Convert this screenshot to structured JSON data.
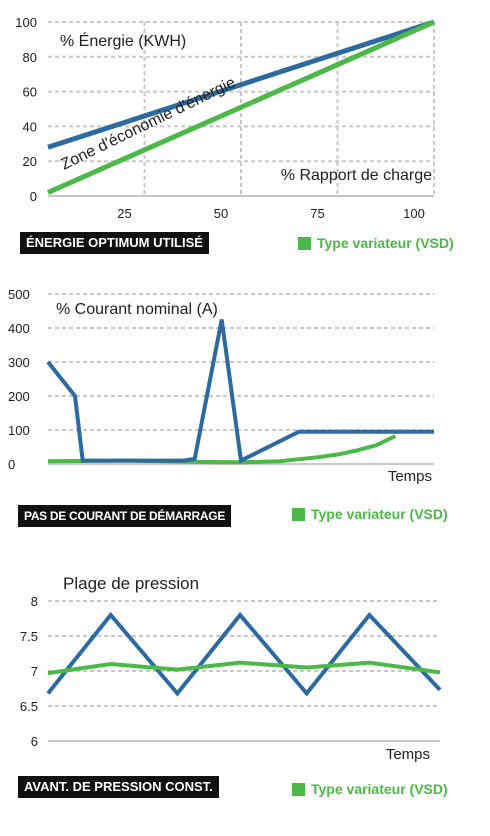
{
  "colors": {
    "blue": "#2d6aa0",
    "green": "#4cb848",
    "grid": "#c8c8c8"
  },
  "chart_data": [
    {
      "type": "line",
      "ylim": [
        0,
        100
      ],
      "xlim": [
        0,
        100
      ],
      "x_ticks": [
        "25",
        "50",
        "75",
        "100"
      ],
      "y_ticks": [
        "0",
        "20",
        "40",
        "60",
        "80",
        "100"
      ],
      "labels": {
        "top": "% Énergie (KWH)",
        "bottom": "% Rapport de charge",
        "diagonal": "Zone d'économie d'énergie"
      },
      "series": [
        {
          "color": "blue",
          "x": [
            0,
            100
          ],
          "y": [
            28,
            100
          ]
        },
        {
          "color": "green",
          "x": [
            0,
            100
          ],
          "y": [
            2,
            100
          ]
        }
      ],
      "legend": {
        "left": "ÉNERGIE OPTIMUM UTILISÉ",
        "right": "Type variateur (VSD)"
      }
    },
    {
      "type": "line",
      "ylim": [
        0,
        500
      ],
      "y_ticks": [
        "0",
        "100",
        "200",
        "300",
        "400",
        "500"
      ],
      "labels": {
        "top": "% Courant nominal (A)",
        "xaxis": "Temps"
      },
      "series": [
        {
          "color": "blue",
          "x": [
            0,
            7,
            9,
            35,
            38,
            45,
            50,
            65,
            100
          ],
          "y": [
            300,
            200,
            10,
            10,
            15,
            425,
            10,
            95,
            95
          ]
        },
        {
          "color": "green",
          "x": [
            0,
            20,
            40,
            50,
            60,
            70,
            75,
            80,
            85,
            90
          ],
          "y": [
            8,
            10,
            6,
            5,
            8,
            20,
            28,
            40,
            55,
            82
          ]
        }
      ],
      "legend": {
        "left": "PAS DE COURANT DE DÉMARRAGE",
        "right": "Type variateur (VSD)"
      }
    },
    {
      "type": "line",
      "ylim": [
        6,
        8
      ],
      "y_ticks": [
        "6",
        "6.5",
        "7",
        "7.5",
        "8"
      ],
      "labels": {
        "top": "Plage de pression",
        "xaxis": "Temps"
      },
      "series": [
        {
          "color": "blue",
          "x": [
            0,
            16,
            33,
            49,
            66,
            82,
            100
          ],
          "y": [
            6.68,
            7.8,
            6.68,
            7.8,
            6.68,
            7.8,
            6.73
          ]
        },
        {
          "color": "green",
          "x": [
            0,
            16,
            33,
            49,
            66,
            82,
            100
          ],
          "y": [
            6.97,
            7.1,
            7.02,
            7.12,
            7.05,
            7.12,
            6.98
          ]
        }
      ],
      "legend": {
        "left": "AVANT. DE PRESSION CONST.",
        "right": "Type variateur (VSD)"
      }
    }
  ]
}
